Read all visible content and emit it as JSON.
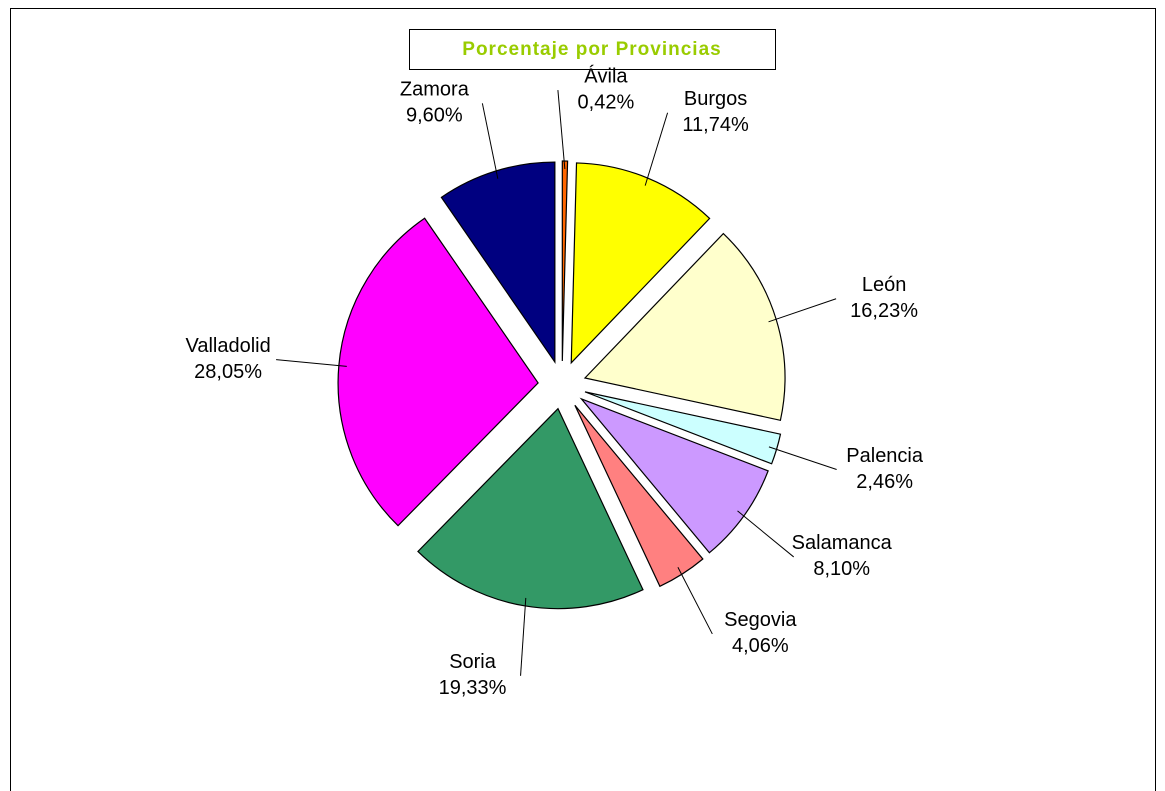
{
  "chart_data": {
    "type": "pie",
    "title": "Porcentaje por Provincias",
    "categories": [
      "Ávila",
      "Burgos",
      "León",
      "Palencia",
      "Salamanca",
      "Segovia",
      "Soria",
      "Valladolid",
      "Zamora"
    ],
    "values": [
      0.42,
      11.74,
      16.23,
      2.46,
      8.1,
      4.06,
      19.33,
      28.05,
      9.6
    ],
    "value_labels": [
      "0,42%",
      "11,74%",
      "16,23%",
      "2,46%",
      "8,10%",
      "4,06%",
      "19,33%",
      "28,05%",
      "9,60%"
    ],
    "colors": [
      "#ff6600",
      "#ffff00",
      "#ffffcc",
      "#ccffff",
      "#cc99ff",
      "#ff8080",
      "#339966",
      "#ff00ff",
      "#000080"
    ]
  }
}
